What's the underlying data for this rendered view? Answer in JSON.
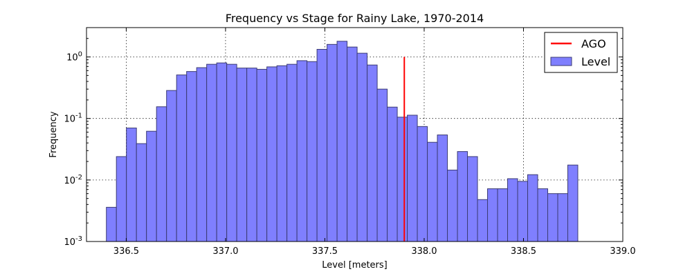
{
  "chart_data": {
    "type": "bar",
    "title": "Frequency vs Stage for Rainy Lake, 1970-2014",
    "xlabel": "Level [meters]",
    "ylabel": "Frequency",
    "xlim": [
      336.3,
      339.0
    ],
    "ylim": [
      0.001,
      3.0
    ],
    "yscale": "log",
    "grid": true,
    "legend_position": "top-right",
    "xticks": [
      336.5,
      337.0,
      337.5,
      338.0,
      338.5,
      339.0
    ],
    "xtick_labels": [
      "336.5",
      "337.0",
      "337.5",
      "338.0",
      "338.5",
      "339.0"
    ],
    "yticks": [
      0.001,
      0.01,
      0.1,
      1
    ],
    "ytick_labels": [
      {
        "base": "10",
        "exp": "-3"
      },
      {
        "base": "10",
        "exp": "-2"
      },
      {
        "base": "10",
        "exp": "-1"
      },
      {
        "base": "10",
        "exp": "0"
      }
    ],
    "bin_width": 0.0505,
    "bin_start": 336.4,
    "series": [
      {
        "name": "Level",
        "kind": "histogram",
        "color": "#7f7ffe",
        "edge_color": "#3b3b73",
        "values": [
          0.0036,
          0.024,
          0.07,
          0.039,
          0.062,
          0.155,
          0.285,
          0.51,
          0.58,
          0.67,
          0.76,
          0.8,
          0.76,
          0.66,
          0.66,
          0.63,
          0.69,
          0.72,
          0.76,
          0.87,
          0.84,
          1.33,
          1.6,
          1.8,
          1.45,
          1.15,
          0.74,
          0.3,
          0.153,
          0.105,
          0.113,
          0.074,
          0.041,
          0.054,
          0.0145,
          0.029,
          0.024,
          0.0048,
          0.0072,
          0.0072,
          0.0105,
          0.0095,
          0.0122,
          0.0072,
          0.006,
          0.006,
          0.0175
        ]
      },
      {
        "name": "AGO",
        "kind": "vline",
        "color": "#ff0000",
        "x": 337.9,
        "y_range": [
          0.001,
          1.0
        ]
      }
    ]
  }
}
